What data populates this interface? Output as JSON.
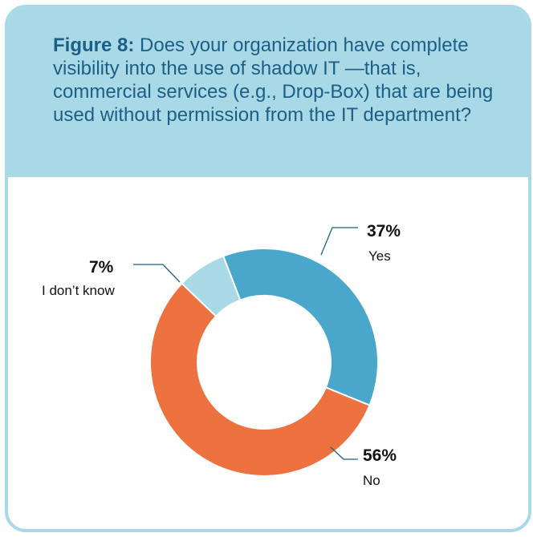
{
  "figure": {
    "prefix": "Figure 8:",
    "question": "Does your organization have complete visibility into the use of shadow IT —that is, commercial services (e.g., Drop-Box) that are being used without permission from the IT department?"
  },
  "chart_data": {
    "type": "pie",
    "title": "Does your organization have complete visibility into the use of shadow IT —that is, commercial services (e.g., Drop-Box) that are being used without permission from the IT department?",
    "donut": true,
    "categories": [
      "Yes",
      "No",
      "I don’t know"
    ],
    "values": [
      37,
      56,
      7
    ],
    "labels": [
      "37%",
      "56%",
      "7%"
    ],
    "colors": [
      "#4aa7cc",
      "#ee7140",
      "#a9d9e6"
    ]
  }
}
